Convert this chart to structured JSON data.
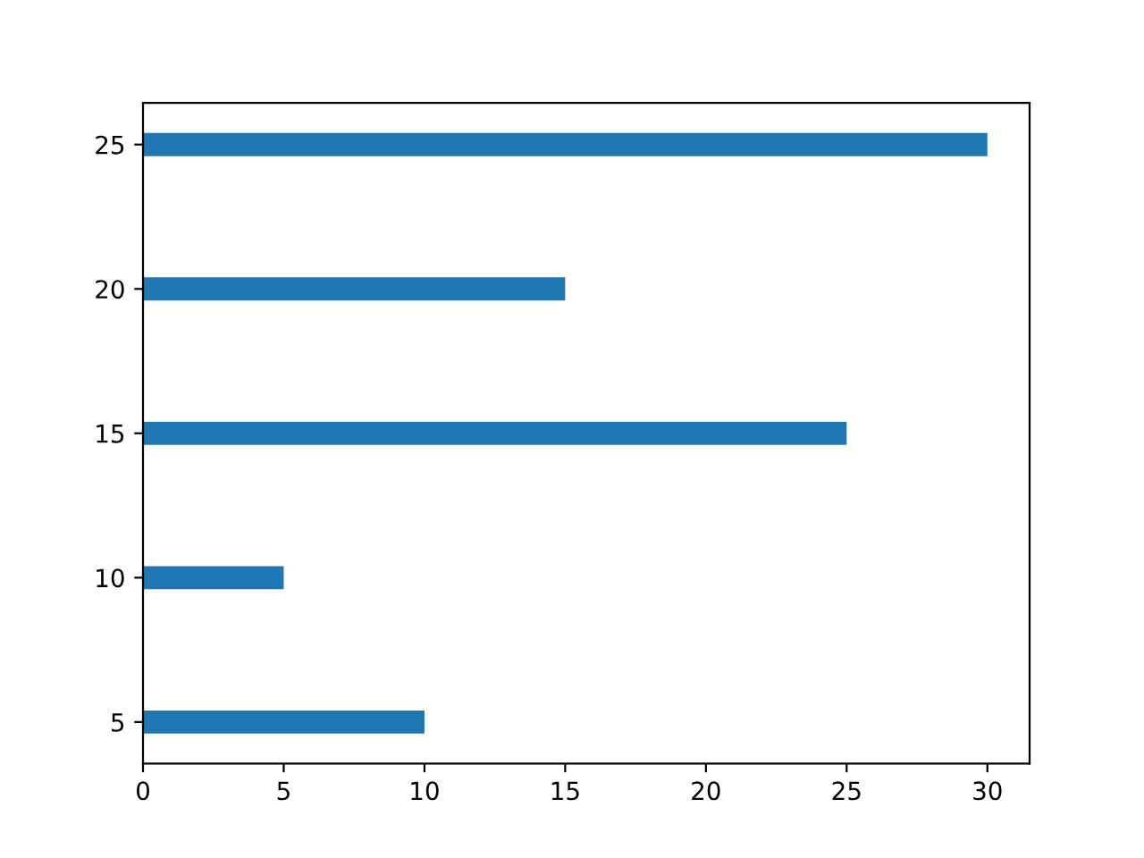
{
  "chart_data": {
    "type": "bar",
    "orientation": "horizontal",
    "x": [
      5,
      10,
      15,
      20,
      25
    ],
    "values": [
      10,
      5,
      25,
      15,
      30
    ],
    "color": "#1f77b4",
    "xlim": [
      0,
      31.5
    ],
    "xticks": [
      0,
      5,
      10,
      15,
      20,
      25,
      30
    ],
    "ylim": [
      3.56,
      26.44
    ],
    "yticks": [
      5,
      10,
      15,
      20,
      25
    ],
    "grid": false
  }
}
